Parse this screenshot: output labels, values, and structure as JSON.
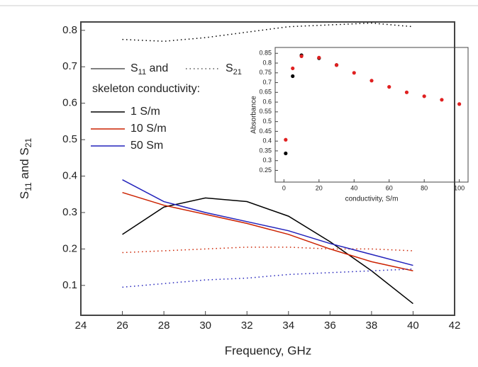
{
  "chart_data": {
    "type": "line",
    "xlabel": "Frequency, GHz",
    "ylabel_parts": [
      "S",
      "11",
      " and S",
      "21"
    ],
    "x": [
      26,
      28,
      30,
      32,
      34,
      36,
      38,
      40
    ],
    "xlim": [
      24,
      42
    ],
    "xticks": [
      24,
      26,
      28,
      30,
      32,
      34,
      36,
      38,
      40,
      42
    ],
    "ylim": [
      0.018,
      0.823
    ],
    "yticks": [
      0.1,
      0.2,
      0.3,
      0.4,
      0.5,
      0.6,
      0.7,
      0.8
    ],
    "legend": {
      "s11_parts": [
        "S",
        "11",
        " and"
      ],
      "s21_parts": [
        "S",
        "21"
      ],
      "heading": "skeleton conductivity:"
    },
    "series": [
      {
        "name": "1 S/m",
        "color": "#000000",
        "values": [
          0.24,
          0.315,
          0.34,
          0.33,
          0.29,
          0.22,
          0.14,
          0.05
        ],
        "s21_values": [
          0.775,
          0.77,
          0.78,
          0.795,
          0.81,
          0.815,
          0.82,
          0.81
        ]
      },
      {
        "name": "10 S/m",
        "color": "#cc2200",
        "values": [
          0.355,
          0.32,
          0.295,
          0.27,
          0.24,
          0.2,
          0.165,
          0.14
        ],
        "s21_values": [
          0.19,
          0.195,
          0.2,
          0.205,
          0.205,
          0.2,
          0.2,
          0.195
        ]
      },
      {
        "name": "50 Sm",
        "color": "#2222bb",
        "values": [
          0.39,
          0.33,
          0.3,
          0.275,
          0.25,
          0.215,
          0.185,
          0.155
        ],
        "s21_values": [
          0.095,
          0.105,
          0.115,
          0.12,
          0.13,
          0.135,
          0.14,
          0.145
        ]
      }
    ],
    "inset": {
      "type": "scatter",
      "xlabel": "conductivity, S/m",
      "ylabel": "Absorbance",
      "xlim": [
        -5,
        105
      ],
      "xticks": [
        0,
        20,
        40,
        60,
        80,
        100
      ],
      "ylim": [
        0.19,
        0.88
      ],
      "yticks": [
        0.25,
        0.3,
        0.35,
        0.4,
        0.45,
        0.5,
        0.55,
        0.6,
        0.65,
        0.7,
        0.75,
        0.8,
        0.85
      ],
      "series": [
        {
          "color": "#000000",
          "x": [
            1,
            5,
            10,
            20,
            30
          ],
          "values": [
            0.337,
            0.733,
            0.84,
            0.825,
            0.79
          ]
        },
        {
          "color": "#e02020",
          "x": [
            1,
            5,
            10,
            20,
            30,
            40,
            50,
            60,
            70,
            80,
            90,
            100
          ],
          "values": [
            0.407,
            0.773,
            0.835,
            0.828,
            0.79,
            0.75,
            0.71,
            0.678,
            0.65,
            0.63,
            0.612,
            0.59
          ]
        }
      ]
    }
  }
}
